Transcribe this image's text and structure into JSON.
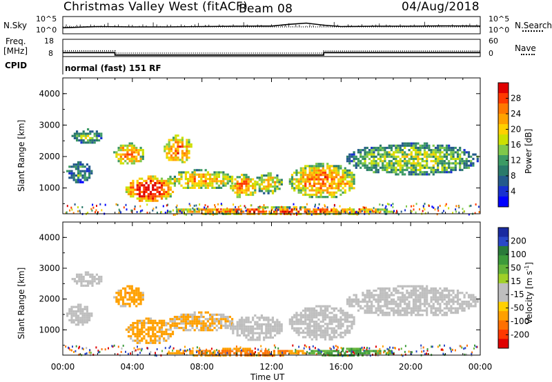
{
  "header": {
    "title": "Christmas Valley West (fitACF)",
    "beam": "Beam 08",
    "date": "04/Aug/2018"
  },
  "left_labels": {
    "nsky": "N.Sky",
    "freq_line1": "Freq.",
    "freq_line2": "[MHz]",
    "cpid": "CPID"
  },
  "right_labels": {
    "nsearch": "N.Search",
    "nave": "Nave"
  },
  "noise_axis": {
    "left_top": "10^5",
    "left_bottom": "10^0",
    "right_top": "10^5",
    "right_bottom": "10^0"
  },
  "freq_axis": {
    "left_top": "18",
    "left_bottom": "8",
    "right_top": "60",
    "right_bottom": "0"
  },
  "cpid_text": "normal (fast) 151 RF",
  "range_ticks": [
    "1000",
    "2000",
    "3000",
    "4000"
  ],
  "time_ticks": [
    "00:00",
    "04:00",
    "08:00",
    "12:00",
    "16:00",
    "20:00",
    "00:00"
  ],
  "x_title": "Time UT",
  "y_title": "Slant Range [km]",
  "power_colorbar": {
    "title": "Power [dB]",
    "labels": [
      "28",
      "24",
      "20",
      "16",
      "12",
      "8",
      "4"
    ],
    "colors": [
      "#e00000",
      "#ff3a00",
      "#ff7800",
      "#ffa200",
      "#ffd000",
      "#cde000",
      "#7fc84a",
      "#3c9a64",
      "#2a7a6a",
      "#245a8c",
      "#1830d0",
      "#0000ff"
    ]
  },
  "velocity_colorbar": {
    "title": "Velocity [m s",
    "title_sup": "-1",
    "title_end": "]",
    "labels": [
      "200",
      "100",
      "50",
      "15",
      "-15",
      "-50",
      "-100",
      "-200"
    ],
    "colors": [
      "#1a2aa0",
      "#2a48c8",
      "#2a7a3a",
      "#3c9a3a",
      "#64b43a",
      "#a0d028",
      "#bebebe",
      "#bebebe",
      "#ffd000",
      "#ffa000",
      "#ff7000",
      "#ff3800",
      "#e00000"
    ]
  },
  "chart_data": [
    {
      "type": "line",
      "title": "N.Sky / N.Search noise",
      "x_range": [
        "00:00",
        "24:00"
      ],
      "ylim": [
        "10^0",
        "10^5"
      ],
      "log_scale": true,
      "series": [
        {
          "name": "N.Sky",
          "style": "solid",
          "x": [
            0,
            2,
            4,
            6,
            8,
            10,
            12,
            13,
            14,
            15,
            16,
            18,
            20,
            22,
            24
          ],
          "y_fraction": [
            0.35,
            0.42,
            0.4,
            0.4,
            0.42,
            0.44,
            0.45,
            0.55,
            0.62,
            0.5,
            0.42,
            0.44,
            0.44,
            0.46,
            0.45
          ]
        },
        {
          "name": "N.Search",
          "style": "dotted",
          "x": [
            0,
            24
          ],
          "y_fraction": [
            0.4,
            0.4
          ]
        }
      ]
    },
    {
      "type": "line",
      "title": "Freq. [MHz] / Nave",
      "x_range": [
        "00:00",
        "24:00"
      ],
      "ylim_left": [
        8,
        18
      ],
      "ylim_right": [
        0,
        60
      ],
      "series": [
        {
          "name": "Freq.",
          "style": "solid",
          "x": [
            0,
            3,
            3,
            15,
            15,
            24
          ],
          "y": [
            10.3,
            10.3,
            8.9,
            8.9,
            10.3,
            10.3
          ]
        },
        {
          "name": "Nave",
          "style": "dotted",
          "x": [
            0,
            3,
            3,
            15,
            15,
            24
          ],
          "y": [
            20,
            20,
            12,
            12,
            19,
            19
          ]
        }
      ]
    },
    {
      "type": "heatmap",
      "title": "Power [dB]",
      "x_range": [
        "00:00",
        "24:00"
      ],
      "ylim": [
        180,
        4500
      ],
      "ylabel": "Slant Range [km]",
      "clim": [
        0,
        30
      ],
      "features": [
        {
          "t0": 0.2,
          "t1": 1.6,
          "r0": 1200,
          "r1": 1850,
          "value": 10
        },
        {
          "t0": 0.5,
          "t1": 2.2,
          "r0": 2450,
          "r1": 2900,
          "value": 12
        },
        {
          "t0": 2.9,
          "t1": 4.6,
          "r0": 1750,
          "r1": 2450,
          "value": 22
        },
        {
          "t0": 3.6,
          "t1": 6.3,
          "r0": 560,
          "r1": 1400,
          "value": 28
        },
        {
          "t0": 5.8,
          "t1": 7.4,
          "r0": 1800,
          "r1": 2700,
          "value": 22
        },
        {
          "t0": 6.0,
          "t1": 9.8,
          "r0": 980,
          "r1": 1600,
          "value": 20
        },
        {
          "t0": 9.6,
          "t1": 11.1,
          "r0": 700,
          "r1": 1450,
          "value": 22
        },
        {
          "t0": 11.0,
          "t1": 12.6,
          "r0": 850,
          "r1": 1500,
          "value": 18
        },
        {
          "t0": 13.0,
          "t1": 16.8,
          "r0": 700,
          "r1": 1800,
          "value": 22
        },
        {
          "t0": 16.3,
          "t1": 23.8,
          "r0": 1450,
          "r1": 2450,
          "value": 14
        },
        {
          "t0": 6.0,
          "t1": 19.0,
          "r0": 180,
          "r1": 420,
          "value": 24
        }
      ]
    },
    {
      "type": "heatmap",
      "title": "Velocity [m s-1]",
      "x_range": [
        "00:00",
        "24:00"
      ],
      "ylim": [
        180,
        4500
      ],
      "ylabel": "Slant Range [km]",
      "clim": [
        -200,
        200
      ],
      "features": [
        {
          "t0": 0.2,
          "t1": 1.6,
          "r0": 1200,
          "r1": 1850,
          "value": 0
        },
        {
          "t0": 0.5,
          "t1": 2.2,
          "r0": 2450,
          "r1": 2900,
          "value": 0
        },
        {
          "t0": 2.9,
          "t1": 4.6,
          "r0": 1750,
          "r1": 2450,
          "value": -40
        },
        {
          "t0": 3.6,
          "t1": 6.3,
          "r0": 560,
          "r1": 1400,
          "value": -30
        },
        {
          "t0": 6.0,
          "t1": 9.8,
          "r0": 980,
          "r1": 1600,
          "value": -20
        },
        {
          "t0": 9.6,
          "t1": 12.6,
          "r0": 700,
          "r1": 1500,
          "value": 0
        },
        {
          "t0": 13.0,
          "t1": 16.8,
          "r0": 700,
          "r1": 1800,
          "value": 0
        },
        {
          "t0": 16.3,
          "t1": 23.8,
          "r0": 1450,
          "r1": 2450,
          "value": 0
        },
        {
          "t0": 6.0,
          "t1": 14.0,
          "r0": 180,
          "r1": 420,
          "value": -60
        },
        {
          "t0": 14.0,
          "t1": 19.0,
          "r0": 180,
          "r1": 420,
          "value": 40
        }
      ]
    }
  ]
}
